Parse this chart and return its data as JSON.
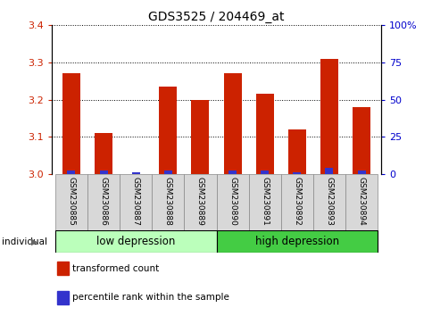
{
  "title": "GDS3525 / 204469_at",
  "categories": [
    "GSM230885",
    "GSM230886",
    "GSM230887",
    "GSM230888",
    "GSM230889",
    "GSM230890",
    "GSM230891",
    "GSM230892",
    "GSM230893",
    "GSM230894"
  ],
  "red_values": [
    3.27,
    3.11,
    3.0,
    3.235,
    3.2,
    3.27,
    3.215,
    3.12,
    3.31,
    3.18
  ],
  "blue_values": [
    3.01,
    3.01,
    3.005,
    3.01,
    3.0,
    3.01,
    3.01,
    3.005,
    3.015,
    3.01
  ],
  "ymin": 3.0,
  "ymax": 3.4,
  "yticks": [
    3.0,
    3.1,
    3.2,
    3.3,
    3.4
  ],
  "right_yticks": [
    0,
    25,
    50,
    75,
    100
  ],
  "red_color": "#cc2200",
  "blue_color": "#3333cc",
  "bar_width": 0.55,
  "blue_bar_width": 0.25,
  "low_color": "#bbffbb",
  "high_color": "#44cc44",
  "group_labels": [
    "low depression",
    "high depression"
  ],
  "legend_red": "transformed count",
  "legend_blue": "percentile rank within the sample",
  "individual_label": "individual",
  "left_color": "#cc2200",
  "right_color": "#0000cc"
}
